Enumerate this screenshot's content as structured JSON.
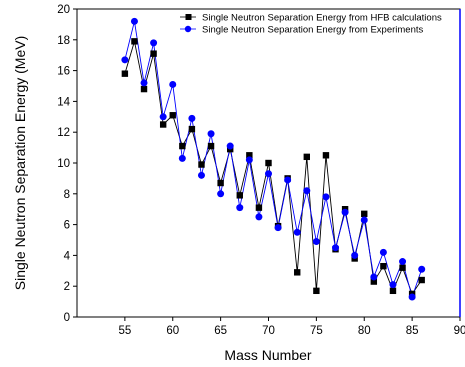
{
  "chart_data": {
    "type": "line",
    "xlabel": "Mass Number",
    "ylabel": "Single Neutron Separation Energy (MeV)",
    "xlim": [
      50,
      90
    ],
    "ylim": [
      0,
      20
    ],
    "x_ticks": [
      55,
      60,
      65,
      70,
      75,
      80,
      85,
      90
    ],
    "y_ticks": [
      0,
      2,
      4,
      6,
      8,
      10,
      12,
      14,
      16,
      18,
      20
    ],
    "grid": false,
    "legend_position": "top-right",
    "x": [
      55,
      56,
      57,
      58,
      59,
      60,
      61,
      62,
      63,
      64,
      65,
      66,
      67,
      68,
      69,
      70,
      71,
      72,
      73,
      74,
      75,
      76,
      77,
      78,
      79,
      80,
      81,
      82,
      83,
      84,
      85,
      86
    ],
    "series": [
      {
        "name": "Single Neutron Separation Energy from HFB calculations",
        "marker": "square",
        "color": "#000000",
        "values": [
          15.8,
          17.9,
          14.8,
          17.1,
          12.5,
          13.1,
          11.1,
          12.2,
          9.9,
          11.1,
          8.7,
          10.9,
          7.9,
          10.5,
          7.1,
          10.0,
          5.9,
          9.0,
          2.9,
          10.4,
          1.7,
          10.5,
          4.4,
          7.0,
          3.8,
          6.7,
          2.3,
          3.3,
          1.7,
          3.2,
          1.5,
          2.4
        ]
      },
      {
        "name": "Single Neutron Separation Energy from Experiments",
        "marker": "circle",
        "color": "#0000ff",
        "values": [
          16.7,
          19.2,
          15.2,
          17.8,
          13.0,
          15.1,
          10.3,
          12.9,
          9.2,
          11.9,
          8.0,
          11.1,
          7.1,
          10.2,
          6.5,
          9.3,
          5.8,
          8.9,
          5.5,
          8.2,
          4.9,
          7.8,
          4.5,
          6.8,
          4.0,
          6.3,
          2.6,
          4.2,
          2.1,
          3.6,
          1.3,
          3.1
        ]
      }
    ]
  }
}
